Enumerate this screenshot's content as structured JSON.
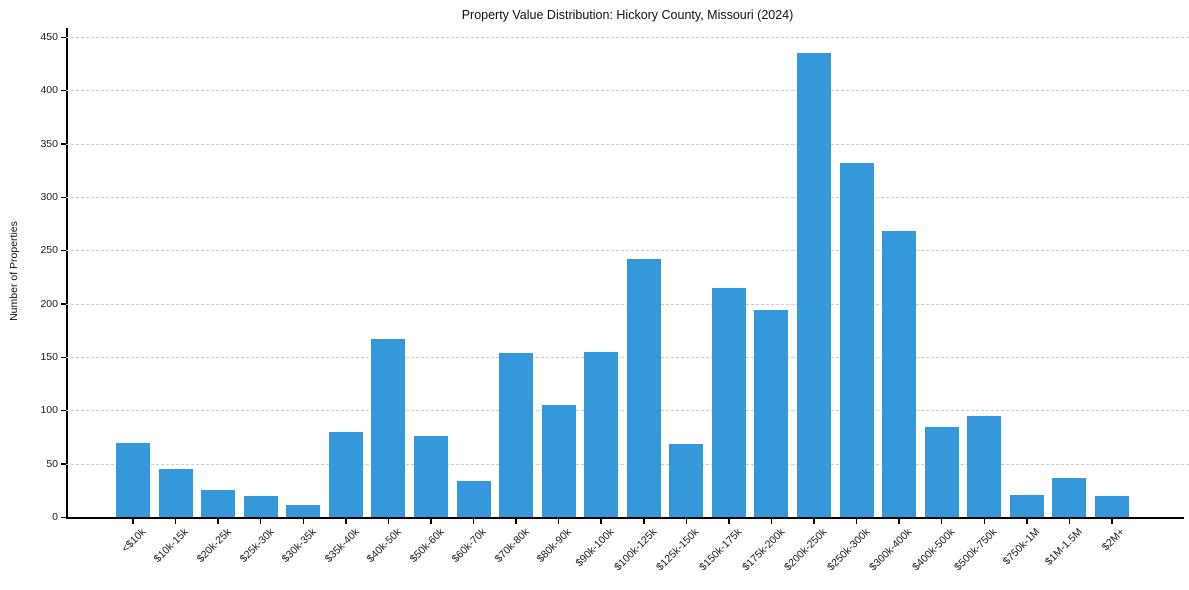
{
  "chart_data": {
    "type": "bar",
    "title": "Property Value Distribution: Hickory County, Missouri (2024)",
    "xlabel": "",
    "ylabel": "Number of Properties",
    "categories": [
      "<$10k",
      "$10k-15k",
      "$20k-25k",
      "$25k-30k",
      "$30k-35k",
      "$35k-40k",
      "$40k-50k",
      "$50k-60k",
      "$60k-70k",
      "$70k-80k",
      "$80k-90k",
      "$90k-100k",
      "$100k-125k",
      "$125k-150k",
      "$150k-175k",
      "$175k-200k",
      "$200k-250k",
      "$250k-300k",
      "$300k-400k",
      "$400k-500k",
      "$500k-750k",
      "$750k-1M",
      "$1M-1.5M",
      "$2M+"
    ],
    "values": [
      69,
      45,
      25,
      20,
      11,
      80,
      167,
      76,
      34,
      154,
      105,
      155,
      242,
      68,
      215,
      194,
      435,
      332,
      268,
      84,
      95,
      21,
      37,
      20
    ],
    "ylim": [
      0,
      450
    ],
    "yticks": [
      0,
      50,
      100,
      150,
      200,
      250,
      300,
      350,
      400,
      450
    ],
    "grid": "horizontal-dashed",
    "legend": null,
    "bar_color": "#3498db",
    "grid_color": "#cccccc",
    "axis_color": "#000000",
    "text_color": "#1a1a1a"
  }
}
